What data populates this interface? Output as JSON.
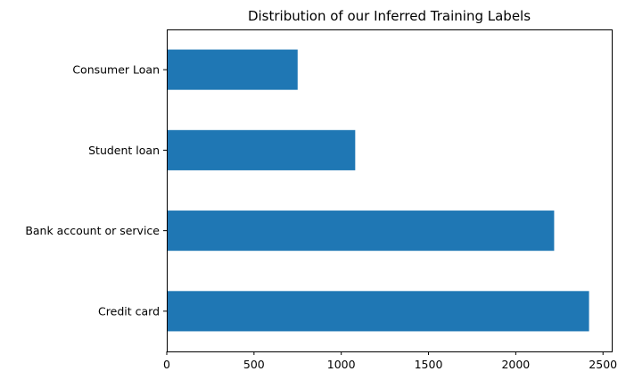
{
  "chart_data": {
    "type": "bar",
    "orientation": "horizontal",
    "title": "Distribution of our Inferred Training Labels",
    "xlabel": "",
    "ylabel": "",
    "categories": [
      "Credit card",
      "Bank account or service",
      "Student loan",
      "Consumer Loan"
    ],
    "values": [
      2420,
      2220,
      1080,
      750
    ],
    "xlim": [
      0,
      2550
    ],
    "xticks": [
      0,
      500,
      1000,
      1500,
      2000,
      2500
    ],
    "xtick_labels": [
      "0",
      "500",
      "1000",
      "1500",
      "2000",
      "2500"
    ],
    "grid": false,
    "bar_color": "#1f77b4"
  }
}
